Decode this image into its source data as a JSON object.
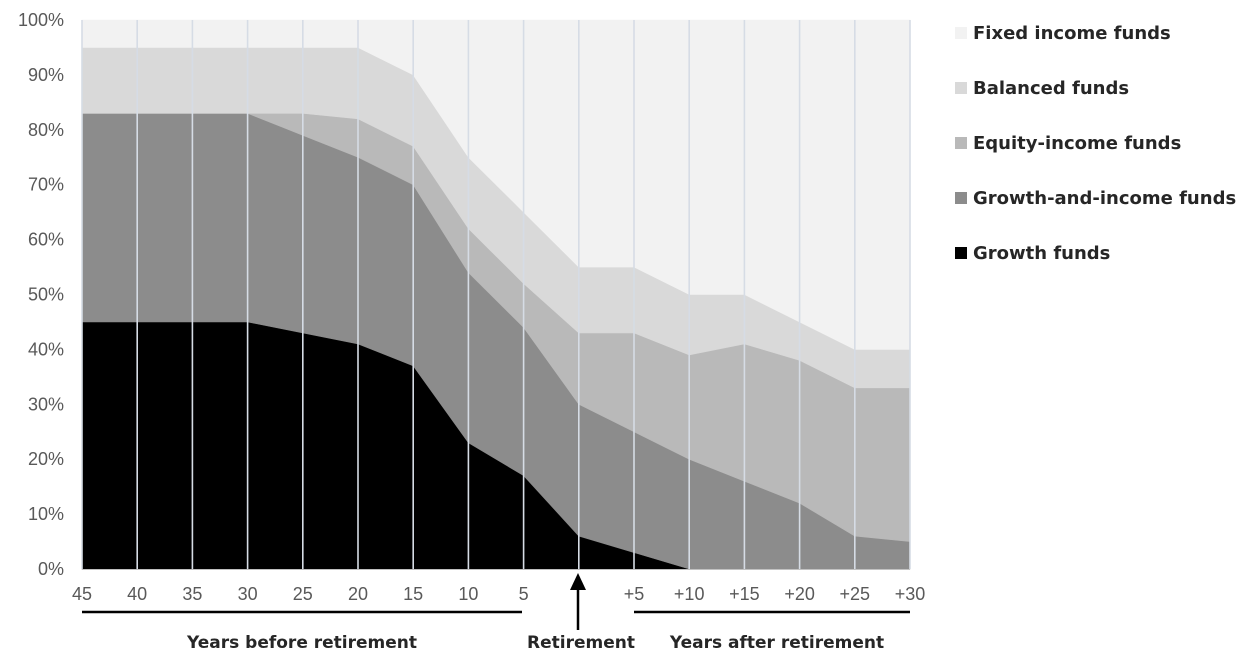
{
  "chart_data": {
    "type": "area",
    "stacked": true,
    "categories": [
      "45",
      "40",
      "35",
      "30",
      "25",
      "20",
      "15",
      "10",
      "5",
      "",
      "+5",
      "+10",
      "+15",
      "+20",
      "+25",
      "+30"
    ],
    "yticks": [
      "0%",
      "10%",
      "20%",
      "30%",
      "40%",
      "50%",
      "60%",
      "70%",
      "80%",
      "90%",
      "100%"
    ],
    "ylim": [
      0,
      100
    ],
    "series": [
      {
        "name": "Growth funds",
        "color": "#000000",
        "values": [
          45,
          45,
          45,
          45,
          43,
          41,
          37,
          23,
          17,
          6,
          3,
          0,
          0,
          0,
          0,
          0
        ]
      },
      {
        "name": "Growth-and-income funds",
        "color": "#8c8c8c",
        "values": [
          38,
          38,
          38,
          38,
          36,
          34,
          33,
          31,
          27,
          24,
          22,
          20,
          16,
          12,
          6,
          5
        ]
      },
      {
        "name": "Equity-income funds",
        "color": "#b9b9b9",
        "values": [
          0,
          0,
          0,
          0,
          4,
          7,
          7,
          8,
          8,
          13,
          18,
          19,
          25,
          26,
          27,
          28
        ]
      },
      {
        "name": "Balanced funds",
        "color": "#d9d9d9",
        "values": [
          12,
          12,
          12,
          12,
          12,
          13,
          13,
          13,
          13,
          12,
          12,
          11,
          9,
          7,
          7,
          7
        ]
      },
      {
        "name": "Fixed income funds",
        "color": "#f2f2f2",
        "values": [
          5,
          5,
          5,
          5,
          5,
          5,
          10,
          25,
          35,
          45,
          45,
          50,
          50,
          55,
          60,
          60
        ]
      }
    ],
    "legend_order": [
      "Fixed income funds",
      "Balanced funds",
      "Equity-income funds",
      "Growth-and-income funds",
      "Growth funds"
    ],
    "legend_position": "right",
    "annotations": {
      "before_label": "Years before retirement",
      "retirement_label": "Retirement",
      "after_label": "Years after retirement"
    },
    "grid": "vertical",
    "grid_color": "#d6dce5"
  }
}
